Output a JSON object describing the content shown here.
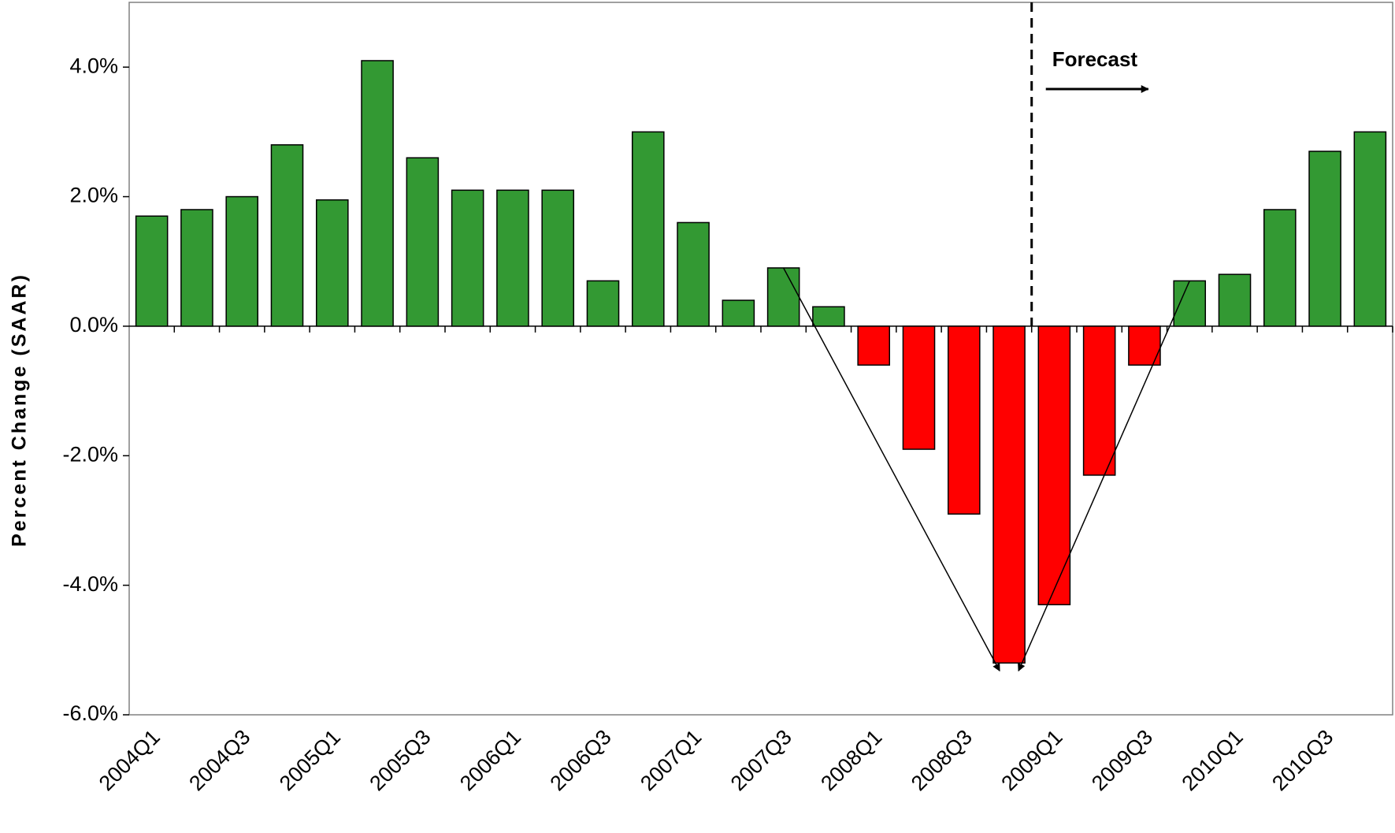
{
  "chart_data": {
    "type": "bar",
    "y_label": "Percent Change (SAAR)",
    "annotation": "Forecast",
    "categories": [
      "2004Q1",
      null,
      "2004Q3",
      null,
      "2005Q1",
      null,
      "2005Q3",
      null,
      "2006Q1",
      null,
      "2006Q3",
      null,
      "2007Q1",
      null,
      "2007Q3",
      null,
      "2008Q1",
      null,
      "2008Q3",
      null,
      "2009Q1",
      null,
      "2009Q3",
      null,
      "2010Q1",
      null,
      "2010Q3",
      null
    ],
    "values": [
      1.7,
      1.8,
      2.0,
      2.8,
      1.95,
      4.1,
      2.6,
      2.1,
      2.1,
      2.1,
      0.7,
      3.0,
      1.6,
      0.4,
      0.9,
      0.3,
      -0.6,
      -1.9,
      -2.9,
      -5.2,
      -4.3,
      -2.3,
      -0.6,
      0.7,
      0.8,
      1.8,
      2.7,
      3.0
    ],
    "positive_color": "#339933",
    "negative_color": "#ff0000",
    "ylim": [
      -6,
      5
    ],
    "yticks": [
      {
        "value": -6,
        "label": "-6.0%"
      },
      {
        "value": -4,
        "label": "-4.0%"
      },
      {
        "value": -2,
        "label": "-2.0%"
      },
      {
        "value": 0,
        "label": "0.0%"
      },
      {
        "value": 2,
        "label": "2.0%"
      },
      {
        "value": 4,
        "label": "4.0%"
      }
    ]
  }
}
